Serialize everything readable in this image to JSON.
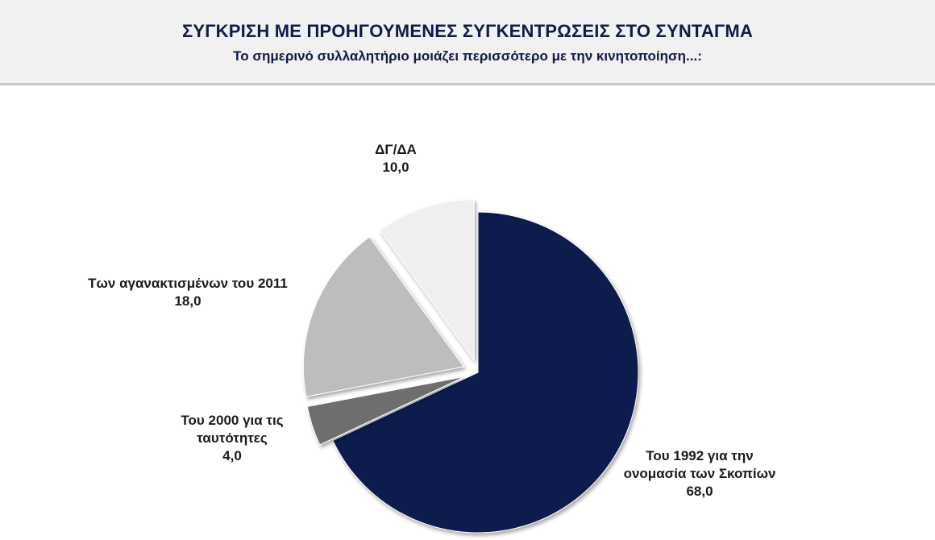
{
  "header": {
    "title": "ΣΥΓΚΡΙΣΗ ΜΕ ΠΡΟΗΓΟΥΜΕΝΕΣ ΣΥΓΚΕΝΤΡΩΣΕΙΣ ΣΤΟ ΣΥΝΤΑΓΜΑ",
    "subtitle": "Το σημερινό συλλαλητήριο μοιάζει περισσότερο με την κινητοποίηση...:"
  },
  "colors": {
    "slice_1992": "#0f1c4d",
    "slice_2000": "#6e6e6e",
    "slice_2011": "#bdbdbd",
    "slice_dk": "#efefef",
    "title": "#0f1c47"
  },
  "chart_data": {
    "type": "pie",
    "title": "ΣΥΓΚΡΙΣΗ ΜΕ ΠΡΟΗΓΟΥΜΕΝΕΣ ΣΥΓΚΕΝΤΡΩΣΕΙΣ ΣΤΟ ΣΥΝΤΑΓΜΑ",
    "subtitle": "Το σημερινό συλλαλητήριο μοιάζει περισσότερο με την κινητοποίηση...:",
    "slices": [
      {
        "key": "s1992",
        "label_lines": [
          "Του 1992 για την",
          "ονομασία των Σκοπίων"
        ],
        "value_text": "68,0",
        "value": 68.0,
        "color": "#0f1c4d"
      },
      {
        "key": "s2000",
        "label_lines": [
          "Του 2000 για τις",
          "ταυτότητες"
        ],
        "value_text": "4,0",
        "value": 4.0,
        "color": "#6e6e6e"
      },
      {
        "key": "s2011",
        "label_lines": [
          "Των αγανακτισμένων του 2011"
        ],
        "value_text": "18,0",
        "value": 18.0,
        "color": "#bdbdbd"
      },
      {
        "key": "sdk",
        "label_lines": [
          "ΔΓ/ΔΑ"
        ],
        "value_text": "10,0",
        "value": 10.0,
        "color": "#efefef"
      }
    ]
  }
}
